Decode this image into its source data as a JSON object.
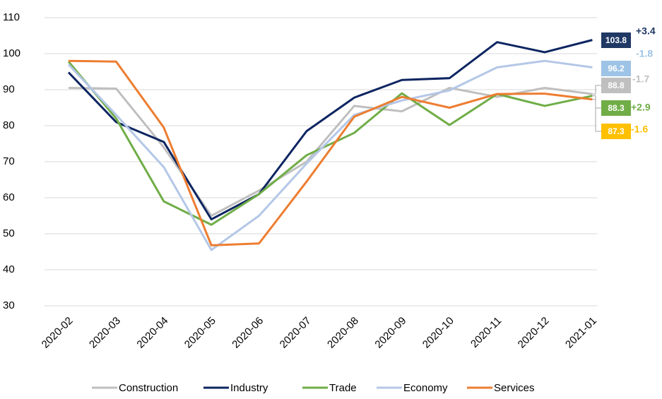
{
  "chart_data": {
    "type": "line",
    "categories": [
      "2020-02",
      "2020-03",
      "2020-04",
      "2020-05",
      "2020-06",
      "2020-07",
      "2020-08",
      "2020-09",
      "2020-10",
      "2020-11",
      "2020-12",
      "2021-01"
    ],
    "ylim": [
      30,
      110
    ],
    "yticks": [
      30,
      40,
      50,
      60,
      70,
      80,
      90,
      100,
      110
    ],
    "grid": true,
    "series": [
      {
        "name": "Construction",
        "color": "#bfbfbf",
        "label_color": "#bfbfbf",
        "change": "-1.7",
        "values": [
          90.5,
          90.3,
          74,
          55,
          62,
          70,
          85.5,
          84,
          90.5,
          88,
          90.5,
          88.8
        ]
      },
      {
        "name": "Industry",
        "color": "#0d2561",
        "label_color": "#1f3864",
        "change": "+3.4",
        "values": [
          94.8,
          81,
          75.5,
          54,
          61,
          78.5,
          87.8,
          92.7,
          93.2,
          103.2,
          100.4,
          103.8
        ]
      },
      {
        "name": "Trade",
        "color": "#70ad47",
        "label_color": "#70ad47",
        "change": "+2.9",
        "values": [
          97.8,
          82,
          59,
          52.5,
          61,
          71.8,
          78,
          89,
          80.2,
          88.8,
          85.5,
          88.3
        ]
      },
      {
        "name": "Economy",
        "color": "#b4c7e7",
        "label_color": "#9dc3e6",
        "change": "-1.8",
        "values": [
          97,
          83,
          68.5,
          45.5,
          55,
          69.5,
          83,
          87,
          89.8,
          96.2,
          98,
          96.2
        ]
      },
      {
        "name": "Services",
        "color": "#ed7d31",
        "label_color": "#ffc000",
        "change": "-1.6",
        "values": [
          98,
          97.8,
          79.5,
          46.8,
          47.3,
          64.5,
          82.5,
          88,
          85,
          88.8,
          88.9,
          87.3
        ]
      }
    ]
  }
}
